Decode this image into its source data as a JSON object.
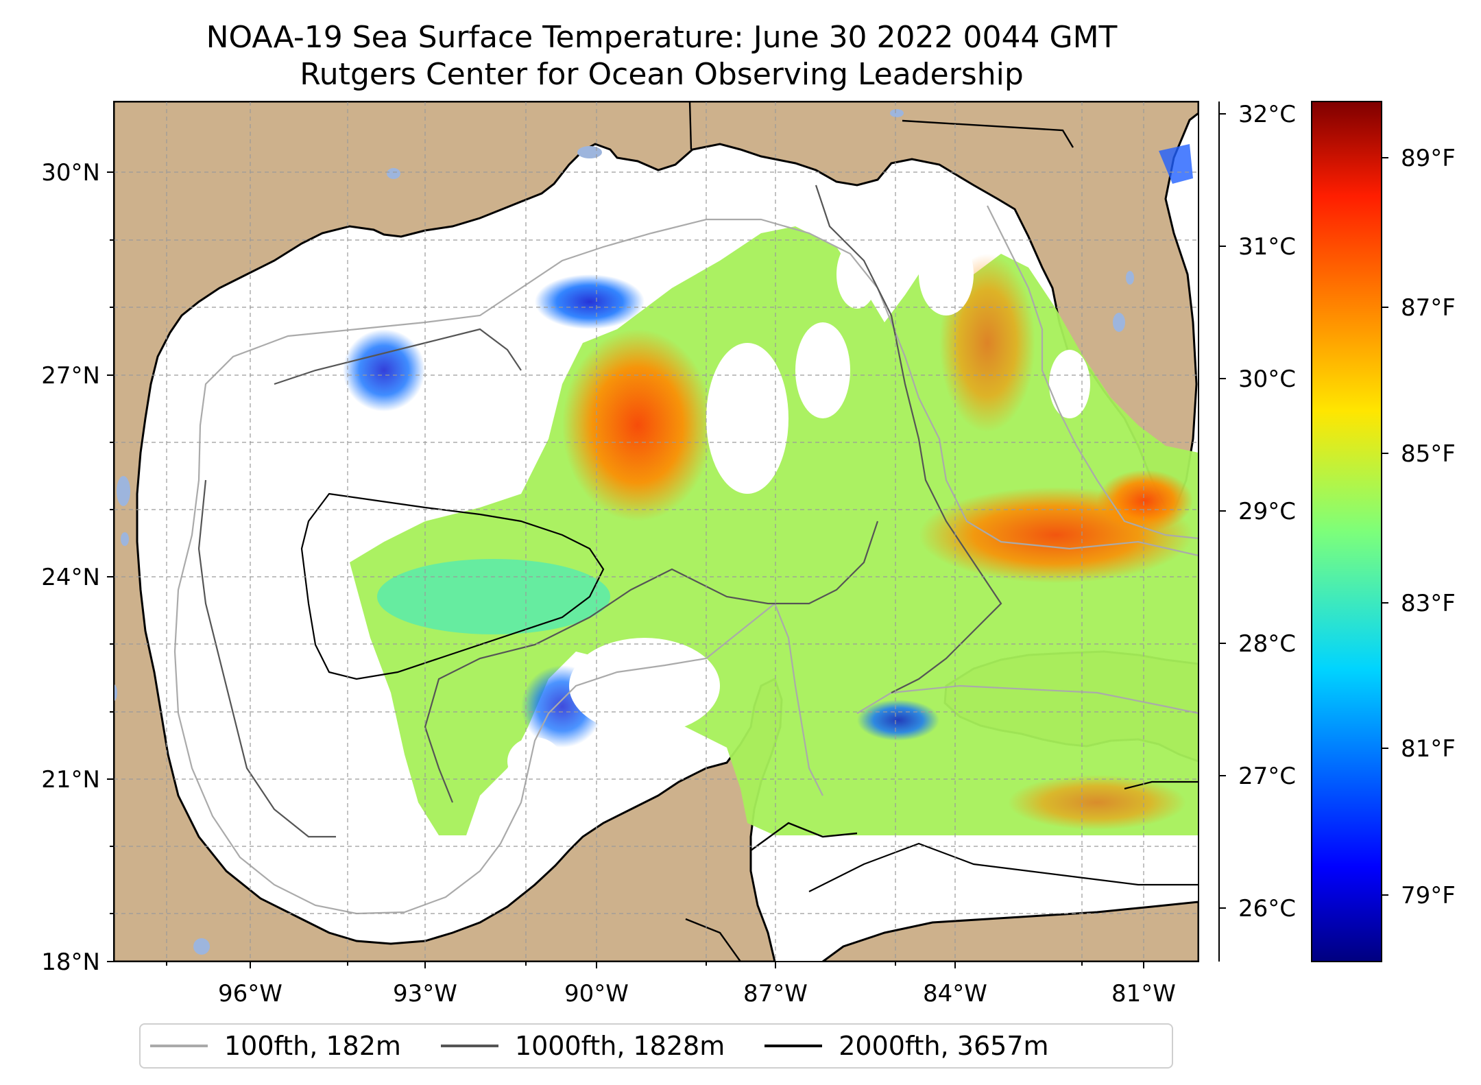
{
  "title": {
    "line1": "NOAA-19 Sea Surface Temperature: June 30 2022 0044 GMT",
    "line2": "Rutgers Center for Ocean Observing Leadership"
  },
  "map": {
    "lat_labels": [
      "30°N",
      "27°N",
      "24°N",
      "21°N",
      "18°N"
    ],
    "lon_labels": [
      "96°W",
      "93°W",
      "90°W",
      "87°W",
      "84°W",
      "81°W"
    ],
    "land_color": "#cdb18c",
    "lake_color": "#9db5dd",
    "extent": {
      "lon": [
        -98.3,
        -80.3
      ],
      "lat": [
        18,
        30.9
      ]
    }
  },
  "colorbar": {
    "celsius_labels": [
      "32°C",
      "31°C",
      "30°C",
      "29°C",
      "28°C",
      "27°C",
      "26°C"
    ],
    "fahrenheit_labels": [
      "89°F",
      "87°F",
      "85°F",
      "83°F",
      "81°F",
      "79°F"
    ],
    "colormap": "jet"
  },
  "legend": {
    "items": [
      {
        "label": "100fth, 182m",
        "color": "#aaaaaa"
      },
      {
        "label": "1000fth, 1828m",
        "color": "#555555"
      },
      {
        "label": "2000fth, 3657m",
        "color": "#000000"
      }
    ]
  }
}
